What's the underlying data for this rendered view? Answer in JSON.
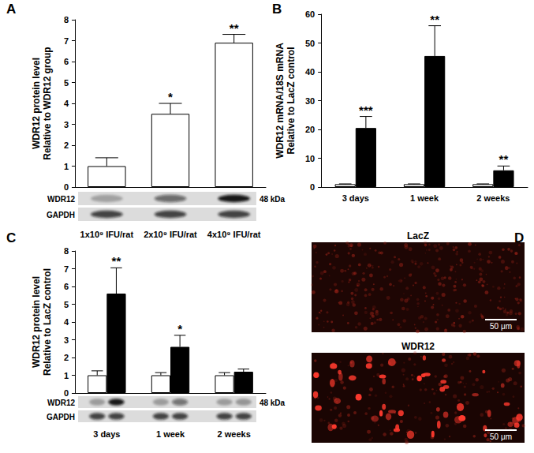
{
  "chart_data": [
    {
      "panel": "A",
      "type": "bar",
      "ylabel": [
        "WDR12 protein level",
        "Relative to WDR12 group"
      ],
      "categories": [
        "1x10⁹ IFU/rat",
        "2x10⁹ IFU/rat",
        "4x10⁹ IFU/rat"
      ],
      "series": [
        {
          "color": "#ffffff",
          "values": [
            1.0,
            3.5,
            6.9
          ],
          "errors": [
            0.4,
            0.5,
            0.4
          ],
          "annotations": [
            null,
            "*",
            "**"
          ]
        }
      ],
      "ylim": [
        0,
        8
      ],
      "yticks": [
        0,
        1,
        2,
        3,
        4,
        5,
        6,
        7,
        8
      ],
      "blot": {
        "rows": [
          "WDR12",
          "GAPDH"
        ],
        "size": "48 kDa"
      }
    },
    {
      "panel": "B",
      "type": "bar",
      "ylabel": [
        "WDR12 mRNA/18S mRNA",
        "Relative to LacZ control"
      ],
      "categories": [
        "3 days",
        "1 week",
        "2 weeks"
      ],
      "series": [
        {
          "color": "#ffffff",
          "values": [
            1.0,
            1.0,
            1.0
          ],
          "errors": [
            0.1,
            0.1,
            0.1
          ],
          "annotations": [
            null,
            null,
            null
          ]
        },
        {
          "color": "#000000",
          "values": [
            20.5,
            45.5,
            5.8
          ],
          "errors": [
            4.0,
            10.5,
            1.5
          ],
          "annotations": [
            "***",
            "**",
            "**"
          ]
        }
      ],
      "ylim": [
        0,
        60
      ],
      "yticks": [
        0,
        10,
        20,
        30,
        40,
        50,
        60
      ]
    },
    {
      "panel": "C",
      "type": "bar",
      "ylabel": [
        "WDR12 protein level",
        "Relative to LacZ control"
      ],
      "categories": [
        "3 days",
        "1 week",
        "2 weeks"
      ],
      "series": [
        {
          "color": "#ffffff",
          "values": [
            1.0,
            1.0,
            1.0
          ],
          "errors": [
            0.25,
            0.15,
            0.15
          ],
          "annotations": [
            null,
            null,
            null
          ]
        },
        {
          "color": "#000000",
          "values": [
            5.6,
            2.6,
            1.2
          ],
          "errors": [
            1.45,
            0.65,
            0.15
          ],
          "annotations": [
            "**",
            "*",
            null
          ]
        }
      ],
      "ylim": [
        0,
        8
      ],
      "yticks": [
        0,
        1,
        2,
        3,
        4,
        5,
        6,
        7,
        8
      ],
      "blot": {
        "rows": [
          "WDR12",
          "GAPDH"
        ],
        "size": "48 kDa"
      }
    }
  ],
  "panel_D": {
    "panel": "D",
    "images": [
      {
        "title": "LacZ",
        "scale_bar": "50 μm"
      },
      {
        "title": "WDR12",
        "scale_bar": "50 μm"
      }
    ]
  }
}
